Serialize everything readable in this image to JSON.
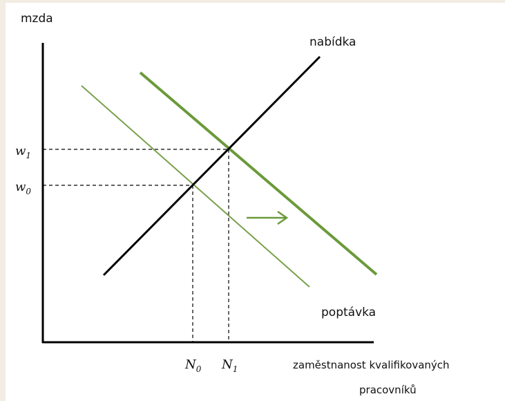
{
  "axes": {
    "y_label": "mzda",
    "x_label_line1": "zaměstnanost kvalifikovaných",
    "x_label_line2": "pracovníků"
  },
  "curves": {
    "supply": "nabídka",
    "demand": "poptávka"
  },
  "wage_levels": [
    {
      "symbol": "w",
      "sub": "1"
    },
    {
      "symbol": "w",
      "sub": "0"
    }
  ],
  "employment_levels": [
    {
      "symbol": "N",
      "sub": "0"
    },
    {
      "symbol": "N",
      "sub": "1"
    }
  ]
}
